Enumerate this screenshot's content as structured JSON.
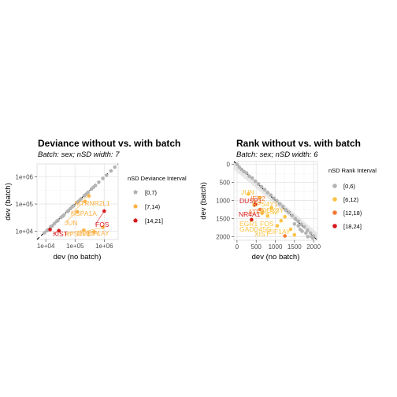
{
  "chart_data": [
    {
      "type": "scatter",
      "title": "Deviance without vs. with batch",
      "subtitle": "Batch: sex; nSD width: 7",
      "xlabel": "dev (no batch)",
      "ylabel": "dev (batch)",
      "scale": "log10",
      "xlim": [
        5000,
        3000000
      ],
      "ylim": [
        5000,
        3000000
      ],
      "x_ticks": [
        10000,
        100000,
        1000000
      ],
      "x_tick_labels": [
        "1e+04",
        "1e+05",
        "1e+06"
      ],
      "y_ticks": [
        10000,
        100000,
        1000000
      ],
      "y_tick_labels": [
        "1e+04",
        "1e+05",
        "1e+06"
      ],
      "identity_line": true,
      "legend": {
        "title": "nSD Deviance Interval",
        "position": "right",
        "entries": [
          {
            "label": "[0,7)",
            "color": "#b3b3b3"
          },
          {
            "label": "[7,14)",
            "color": "#fbb244"
          },
          {
            "label": "[14,21]",
            "color": "#d7191c"
          }
        ]
      },
      "series": [
        {
          "name": "[0,7)",
          "color": "#b3b3b3",
          "points": [
            [
              9000,
              8800
            ],
            [
              12000,
              11500
            ],
            [
              15000,
              14800
            ],
            [
              20000,
              19500
            ],
            [
              26000,
              25000
            ],
            [
              33000,
              32000
            ],
            [
              42000,
              40000
            ],
            [
              55000,
              53000
            ],
            [
              70000,
              68000
            ],
            [
              90000,
              87000
            ],
            [
              120000,
              116000
            ],
            [
              160000,
              155000
            ],
            [
              210000,
              205000
            ],
            [
              280000,
              270000
            ],
            [
              370000,
              360000
            ],
            [
              500000,
              485000
            ],
            [
              650000,
              630000
            ],
            [
              900000,
              870000
            ],
            [
              1200000,
              1150000
            ],
            [
              1700000,
              1650000
            ],
            [
              2300000,
              2250000
            ],
            [
              11000,
              10500
            ],
            [
              17000,
              16000
            ],
            [
              24000,
              23500
            ],
            [
              38000,
              36000
            ],
            [
              60000,
              58000
            ],
            [
              80000,
              79000
            ],
            [
              140000,
              132000
            ],
            [
              240000,
              230000
            ],
            [
              430000,
              415000
            ]
          ]
        },
        {
          "name": "[7,14)",
          "color": "#fbb244",
          "points": [
            [
              300000,
              200000
            ],
            [
              220000,
              125000
            ],
            [
              120000,
              52000
            ],
            [
              900000,
              14000
            ],
            [
              200000,
              11000
            ],
            [
              450000,
              9500
            ]
          ]
        },
        {
          "name": "[14,21]",
          "color": "#d7191c",
          "points": [
            [
              1000000,
              55000
            ],
            [
              28000,
              10500
            ],
            [
              14000,
              11500
            ]
          ]
        }
      ],
      "annotations": [
        {
          "text": "MTRNR2L1",
          "color": "#fbb244",
          "x": 300000,
          "y": 200000
        },
        {
          "text": "HSPA1A",
          "color": "#fbb244",
          "x": 220000,
          "y": 125000
        },
        {
          "text": "FOS",
          "color": "#d7191c",
          "x": 1000000,
          "y": 55000
        },
        {
          "text": "JUN",
          "color": "#fbb244",
          "x": 120000,
          "y": 52000
        },
        {
          "text": "DDX3Y",
          "color": "#fbb244",
          "x": 900000,
          "y": 14000
        },
        {
          "text": "RPS4Y1",
          "color": "#fbb244",
          "x": 200000,
          "y": 11000
        },
        {
          "text": "EIF1AY",
          "color": "#fbb244",
          "x": 450000,
          "y": 9500
        },
        {
          "text": "XIST",
          "color": "#d7191c",
          "x": 28000,
          "y": 10500
        }
      ]
    },
    {
      "type": "scatter",
      "title": "Rank without vs. with batch",
      "subtitle": "Batch: sex; nSD width: 6",
      "xlabel": "dev (no batch)",
      "ylabel": "dev (batch)",
      "xlim": [
        -80,
        2100
      ],
      "ylim": [
        -80,
        2100
      ],
      "y_reversed": true,
      "x_ticks": [
        0,
        500,
        1000,
        1500,
        2000
      ],
      "x_tick_labels": [
        "0",
        "500",
        "1000",
        "1500",
        "2000"
      ],
      "y_ticks": [
        0,
        500,
        1000,
        1500,
        2000
      ],
      "y_tick_labels": [
        "0",
        "500",
        "1000",
        "1500",
        "2000"
      ],
      "identity_line": true,
      "legend": {
        "title": "nSD Rank Interval",
        "position": "right",
        "entries": [
          {
            "label": "[0,6)",
            "color": "#b3b3b3"
          },
          {
            "label": "[6,12)",
            "color": "#fcc443"
          },
          {
            "label": "[12,18)",
            "color": "#f47a35"
          },
          {
            "label": "[18,24]",
            "color": "#d7191c"
          }
        ]
      },
      "series": [
        {
          "name": "[0,6)",
          "color": "#b3b3b3",
          "points": [
            [
              0,
              0
            ],
            [
              60,
              80
            ],
            [
              120,
              140
            ],
            [
              180,
              200
            ],
            [
              250,
              240
            ],
            [
              320,
              330
            ],
            [
              400,
              380
            ],
            [
              480,
              470
            ],
            [
              560,
              540
            ],
            [
              640,
              620
            ],
            [
              720,
              700
            ],
            [
              800,
              780
            ],
            [
              880,
              850
            ],
            [
              960,
              940
            ],
            [
              1040,
              1010
            ],
            [
              1120,
              1100
            ],
            [
              1200,
              1170
            ],
            [
              1280,
              1260
            ],
            [
              1360,
              1330
            ],
            [
              1440,
              1420
            ],
            [
              1520,
              1500
            ],
            [
              1600,
              1570
            ],
            [
              1680,
              1660
            ],
            [
              1760,
              1730
            ],
            [
              1840,
              1820
            ],
            [
              1920,
              1900
            ],
            [
              2000,
              1980
            ],
            [
              1980,
              2040
            ],
            [
              1600,
              1700
            ],
            [
              1700,
              1850
            ],
            [
              1850,
              2000
            ],
            [
              1500,
              1650
            ],
            [
              1800,
              1900
            ],
            [
              1950,
              2000
            ],
            [
              1650,
              1800
            ]
          ]
        },
        {
          "name": "[6,12)",
          "color": "#fcc443",
          "points": [
            [
              300,
              820
            ],
            [
              600,
              920
            ],
            [
              650,
              1350
            ],
            [
              800,
              1430
            ],
            [
              1050,
              1700
            ],
            [
              1150,
              1560
            ],
            [
              1250,
              1450
            ],
            [
              1400,
              1800
            ],
            [
              1500,
              1950
            ],
            [
              900,
              1200
            ]
          ]
        },
        {
          "name": "[12,18)",
          "color": "#f47a35",
          "points": [
            [
              600,
              1250
            ],
            [
              450,
              1130
            ],
            [
              1250,
              1980
            ]
          ]
        },
        {
          "name": "[18,24]",
          "color": "#d7191c",
          "points": [
            [
              380,
              1530
            ],
            [
              480,
              1100
            ]
          ]
        }
      ],
      "annotations": [
        {
          "text": "JUN",
          "color": "#fcc443",
          "x": 300,
          "y": 820
        },
        {
          "text": "DUSP1",
          "color": "#d7191c",
          "x": 480,
          "y": 1100
        },
        {
          "text": "NR4A1",
          "color": "#d7191c",
          "x": 380,
          "y": 1530
        },
        {
          "text": "RPS4Y1",
          "color": "#fcc443",
          "x": 650,
          "y": 1350
        },
        {
          "text": "DDX3Y",
          "color": "#fcc443",
          "x": 800,
          "y": 1430
        },
        {
          "text": "EGR1",
          "color": "#fcc443",
          "x": 1050,
          "y": 1700
        },
        {
          "text": "FOS",
          "color": "#fcc443",
          "x": 1150,
          "y": 1560
        },
        {
          "text": "GADD45G",
          "color": "#fcc443",
          "x": 1250,
          "y": 1450
        },
        {
          "text": "EIF1AY",
          "color": "#fcc443",
          "x": 1400,
          "y": 1800
        },
        {
          "text": "XIST",
          "color": "#fcc443",
          "x": 1500,
          "y": 1950
        },
        {
          "text": "ATF3",
          "color": "#f47a35",
          "x": 600,
          "y": 1250
        },
        {
          "text": "RGS2",
          "color": "#fcc443",
          "x": 900,
          "y": 1200
        },
        {
          "text": "IER2",
          "color": "#f47a35",
          "x": 450,
          "y": 1130
        }
      ]
    }
  ]
}
